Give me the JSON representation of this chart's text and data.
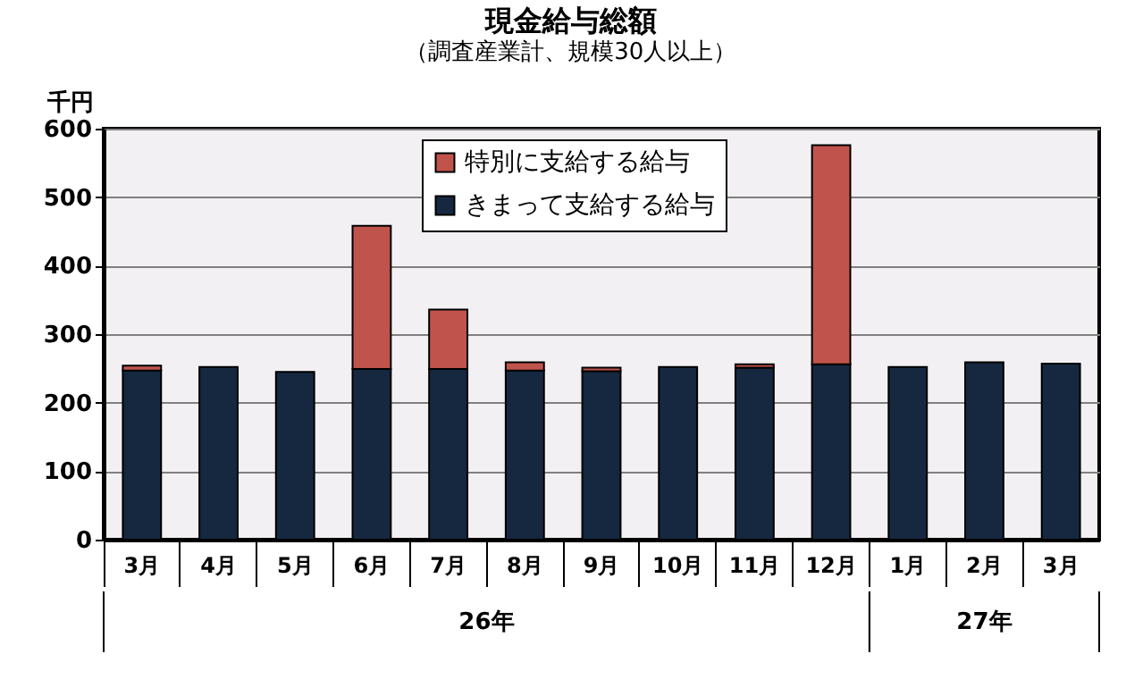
{
  "chart_data": {
    "type": "bar",
    "title": "現金給与総額",
    "subtitle": "（調査産業計、規模30人以上）",
    "ylabel": "千円",
    "categories": [
      "3月",
      "4月",
      "5月",
      "6月",
      "7月",
      "8月",
      "9月",
      "10月",
      "11月",
      "12月",
      "1月",
      "2月",
      "3月"
    ],
    "series": [
      {
        "name": "きまって支給する給与",
        "color": "#162840",
        "values": [
          247,
          252,
          245,
          249,
          249,
          247,
          246,
          252,
          251,
          256,
          252,
          259,
          257
        ]
      },
      {
        "name": "特別に支給する給与",
        "color": "#c0544c",
        "values": [
          7,
          null,
          null,
          209,
          87,
          12,
          5,
          null,
          5,
          320,
          null,
          null,
          null
        ]
      }
    ],
    "stacked": true,
    "ylim": [
      0,
      600
    ],
    "yticks": [
      0,
      100,
      200,
      300,
      400,
      500,
      600
    ],
    "grid": "y",
    "legend": "top",
    "annotations": [
      "26年",
      "27年"
    ]
  }
}
